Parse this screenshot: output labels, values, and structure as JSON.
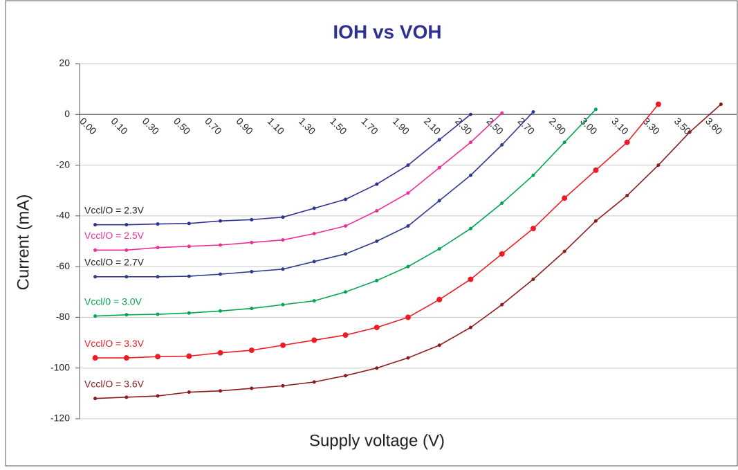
{
  "chart_data": {
    "type": "line",
    "title": "IOH vs VOH",
    "x_label": "Supply voltage (V)",
    "y_label": "Current (mA)",
    "categories": [
      "0.00",
      "0.10",
      "0.30",
      "0.50",
      "0.70",
      "0.90",
      "1.10",
      "1.30",
      "1.50",
      "1.70",
      "1.90",
      "2.10",
      "2.30",
      "2.50",
      "2.70",
      "2.90",
      "3.00",
      "3.10",
      "3.30",
      "3.50",
      "3.60"
    ],
    "ylim": [
      -120,
      20
    ],
    "yticks": [
      -120,
      -100,
      -80,
      -60,
      -40,
      -20,
      0,
      20
    ],
    "grid": true,
    "series": [
      {
        "name": "Vccl/O = 2.3V",
        "color": "#2e3192",
        "values": [
          -43.5,
          -43.5,
          -43.2,
          -43,
          -42,
          -41.5,
          -40.5,
          -37,
          -33.5,
          -27.5,
          -20,
          -10,
          0,
          null,
          null,
          null,
          null,
          null,
          null,
          null,
          null
        ]
      },
      {
        "name": "Vccl/O = 2.5V",
        "color": "#ec2f96",
        "values": [
          -53.5,
          -53.5,
          -52.5,
          -52,
          -51.5,
          -50.5,
          -49.5,
          -47,
          -44,
          -38,
          -31,
          -21,
          -11,
          0.5,
          null,
          null,
          null,
          null,
          null,
          null,
          null
        ]
      },
      {
        "name": "Vccl/O = 2.7V",
        "color": "#2e3a8c",
        "values": [
          -64,
          -64,
          -64,
          -63.8,
          -63,
          -62,
          -61,
          -58,
          -55,
          -50,
          -44,
          -34,
          -24,
          -12,
          1,
          null,
          null,
          null,
          null,
          null,
          null
        ]
      },
      {
        "name": "Vccl/0 = 3.0V",
        "color": "#00a651",
        "values": [
          -79.5,
          -79,
          -78.8,
          -78.3,
          -77.5,
          -76.5,
          -75,
          -73.5,
          -70,
          -65.5,
          -60,
          -53,
          -45,
          -35,
          -24,
          -11,
          2,
          null,
          null,
          null,
          null
        ]
      },
      {
        "name": "Vccl/O = 3.3V",
        "color": "#ed1c24",
        "values": [
          -96,
          -96,
          -95.5,
          -95.3,
          -94,
          -93,
          -91,
          -89,
          -87,
          -84,
          -80,
          -73,
          -65,
          -55,
          -45,
          -33,
          -22,
          -11,
          4,
          null,
          null
        ]
      },
      {
        "name": "Vccl/O = 3.6V",
        "color": "#8b1a1a",
        "values": [
          -112,
          -111.5,
          -111,
          -109.5,
          -109,
          -108,
          -107,
          -105.5,
          -103,
          -100,
          -96,
          -91,
          -84,
          -75,
          -65,
          -54,
          -42,
          -32,
          -20,
          -7,
          4
        ]
      }
    ]
  }
}
